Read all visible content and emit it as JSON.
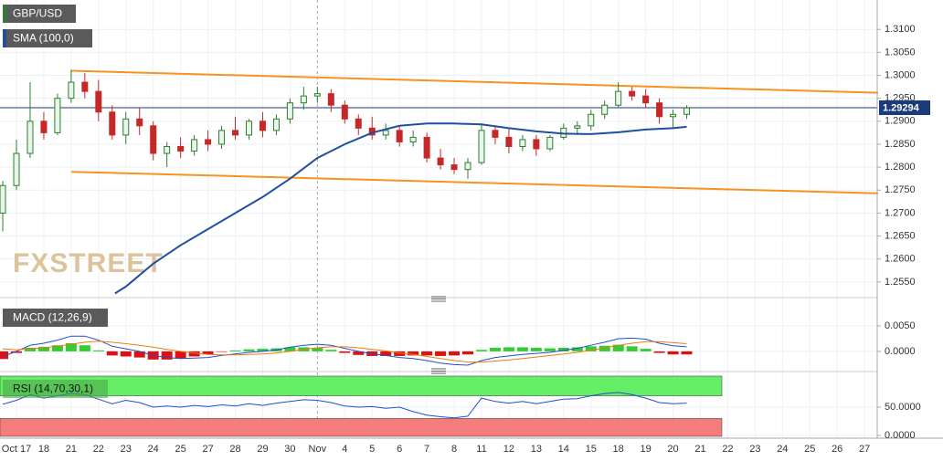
{
  "chart_data": {
    "type": "candlestick",
    "title": "GBP/USD",
    "watermark": "FXSTREET",
    "categories": [
      "Oct 17",
      "18",
      "21",
      "22",
      "23",
      "24",
      "25",
      "27",
      "28",
      "29",
      "30",
      "Nov",
      "4",
      "5",
      "6",
      "7",
      "8",
      "11",
      "12",
      "13",
      "14",
      "15",
      "18",
      "19",
      "20",
      "21",
      "22",
      "23",
      "24",
      "25",
      "26",
      "27"
    ],
    "x": [
      -0.5,
      0,
      0.5,
      1,
      1.5,
      2,
      2.5,
      3,
      3.5,
      4,
      4.5,
      5,
      5.5,
      6,
      6.5,
      7,
      7.5,
      8,
      8.5,
      9,
      9.5,
      10,
      10.5,
      11,
      11.5,
      12,
      12.5,
      13,
      13.5,
      14,
      14.5,
      15,
      15.5,
      16,
      16.5,
      17,
      17.5,
      18,
      18.5,
      19,
      19.5,
      20,
      20.5,
      21,
      21.5,
      22,
      22.5,
      23,
      23.5,
      24,
      24.5
    ],
    "open": [
      1.27,
      1.276,
      1.283,
      1.29,
      1.2875,
      1.295,
      1.2985,
      1.2965,
      1.292,
      1.287,
      1.2905,
      1.289,
      1.283,
      1.2845,
      1.2835,
      1.286,
      1.285,
      1.288,
      1.287,
      1.29,
      1.288,
      1.2905,
      1.294,
      1.2955,
      1.296,
      1.2935,
      1.2905,
      1.2885,
      1.287,
      1.288,
      1.2855,
      1.2865,
      1.282,
      1.2805,
      1.2795,
      1.281,
      1.288,
      1.2865,
      1.2845,
      1.286,
      1.284,
      1.2865,
      1.2885,
      1.289,
      1.2915,
      1.2935,
      1.2965,
      1.2955,
      1.294,
      1.291,
      1.2915
    ],
    "high": [
      1.277,
      1.286,
      1.2985,
      1.292,
      1.296,
      1.3012,
      1.3005,
      1.299,
      1.2935,
      1.292,
      1.293,
      1.29,
      1.2855,
      1.2865,
      1.287,
      1.288,
      1.289,
      1.291,
      1.2905,
      1.292,
      1.2915,
      1.295,
      1.2975,
      1.2975,
      1.297,
      1.2945,
      1.2915,
      1.291,
      1.2895,
      1.289,
      1.288,
      1.2875,
      1.284,
      1.282,
      1.282,
      1.2895,
      1.289,
      1.2885,
      1.287,
      1.287,
      1.287,
      1.2895,
      1.29,
      1.2925,
      1.2945,
      1.2985,
      1.2975,
      1.297,
      1.295,
      1.2925,
      1.2935
    ],
    "low": [
      1.266,
      1.275,
      1.282,
      1.286,
      1.287,
      1.294,
      1.295,
      1.29,
      1.286,
      1.285,
      1.287,
      1.2815,
      1.28,
      1.282,
      1.2825,
      1.2835,
      1.284,
      1.286,
      1.286,
      1.2865,
      1.287,
      1.2895,
      1.2925,
      1.294,
      1.292,
      1.2895,
      1.287,
      1.286,
      1.286,
      1.2845,
      1.2845,
      1.281,
      1.2795,
      1.2785,
      1.2775,
      1.2805,
      1.285,
      1.283,
      1.2835,
      1.2825,
      1.2835,
      1.286,
      1.287,
      1.288,
      1.2905,
      1.293,
      1.2945,
      1.293,
      1.2895,
      1.2885,
      1.2905
    ],
    "close": [
      1.276,
      1.283,
      1.29,
      1.2875,
      1.295,
      1.2985,
      1.2965,
      1.292,
      1.287,
      1.2905,
      1.289,
      1.283,
      1.2845,
      1.2835,
      1.286,
      1.285,
      1.288,
      1.287,
      1.29,
      1.288,
      1.2905,
      1.294,
      1.2955,
      1.296,
      1.2935,
      1.2905,
      1.2885,
      1.287,
      1.288,
      1.2855,
      1.2865,
      1.282,
      1.2805,
      1.2795,
      1.281,
      1.288,
      1.2865,
      1.2845,
      1.286,
      1.284,
      1.2865,
      1.2885,
      1.289,
      1.2915,
      1.2935,
      1.2965,
      1.2955,
      1.294,
      1.291,
      1.2915,
      1.2929
    ],
    "up_color": "#2e7d32",
    "down_color": "#c62828",
    "ylim": [
      1.2518,
      1.3164
    ],
    "yticks": [
      {
        "value": 1.255,
        "label": "1.2550"
      },
      {
        "value": 1.26,
        "label": "1.2600"
      },
      {
        "value": 1.265,
        "label": "1.2650"
      },
      {
        "value": 1.27,
        "label": "1.2700"
      },
      {
        "value": 1.275,
        "label": "1.2750"
      },
      {
        "value": 1.28,
        "label": "1.2800"
      },
      {
        "value": 1.285,
        "label": "1.2850"
      },
      {
        "value": 1.29,
        "label": "1.2900"
      },
      {
        "value": 1.295,
        "label": "1.2950"
      },
      {
        "value": 1.3,
        "label": "1.3000"
      },
      {
        "value": 1.305,
        "label": "1.3050"
      },
      {
        "value": 1.31,
        "label": "1.3100"
      }
    ],
    "grid": true,
    "last_price": 1.29294,
    "last_price_color": "#1a3a7a",
    "overlays": [
      {
        "name": "SMA (100,0)",
        "color": "#1f4fa0",
        "x": [
          3.6,
          4,
          5,
          6,
          7,
          8,
          9,
          10,
          11,
          12,
          13,
          14,
          15,
          16,
          17,
          18,
          19,
          20,
          21,
          22,
          23,
          24,
          24.5
        ],
        "values": [
          1.2525,
          1.254,
          1.259,
          1.263,
          1.2665,
          1.27,
          1.2735,
          1.2775,
          1.282,
          1.285,
          1.2875,
          1.289,
          1.2895,
          1.2895,
          1.2893,
          1.2885,
          1.2878,
          1.2873,
          1.2872,
          1.2876,
          1.2882,
          1.2885,
          1.2888
        ]
      }
    ],
    "trendlines": [
      {
        "color": "#f7931e",
        "x": [
          2,
          31.5
        ],
        "values": [
          1.301,
          1.2962
        ]
      },
      {
        "color": "#f7931e",
        "x": [
          2,
          31.5
        ],
        "values": [
          1.279,
          1.2743
        ]
      }
    ],
    "macd": {
      "name": "MACD (12,26,9)",
      "ylim": [
        -0.0036,
        0.0102
      ],
      "yticks": [
        {
          "value": 0,
          "label": "0.0000"
        },
        {
          "value": 0.005,
          "label": "0.0050"
        }
      ],
      "macd": [
        -0.001,
        0.0,
        0.0012,
        0.0016,
        0.0022,
        0.003,
        0.003,
        0.0022,
        0.001,
        0.0005,
        0.0,
        -0.0008,
        -0.0012,
        -0.0014,
        -0.0013,
        -0.0012,
        -0.0008,
        -0.0005,
        -0.0002,
        0.0,
        0.0003,
        0.0008,
        0.0012,
        0.0014,
        0.0012,
        0.0006,
        0.0,
        -0.0005,
        -0.0008,
        -0.0012,
        -0.0014,
        -0.0018,
        -0.0023,
        -0.0026,
        -0.0027,
        -0.0018,
        -0.0012,
        -0.0009,
        -0.0006,
        -0.0004,
        -0.0002,
        0.0002,
        0.0006,
        0.0012,
        0.0018,
        0.0025,
        0.0026,
        0.0024,
        0.0016,
        0.0011,
        0.0009
      ],
      "signal": [
        0.0005,
        0.0003,
        0.0005,
        0.0007,
        0.001,
        0.0014,
        0.0018,
        0.002,
        0.0018,
        0.0015,
        0.0012,
        0.0008,
        0.0004,
        0.0,
        -0.0003,
        -0.0006,
        -0.0007,
        -0.0007,
        -0.0006,
        -0.0005,
        -0.0003,
        0.0,
        0.0004,
        0.0007,
        0.0009,
        0.0009,
        0.0007,
        0.0004,
        0.0001,
        -0.0003,
        -0.0006,
        -0.001,
        -0.0014,
        -0.0018,
        -0.0021,
        -0.0021,
        -0.0019,
        -0.0017,
        -0.0014,
        -0.0011,
        -0.0008,
        -0.0005,
        -0.0002,
        0.0002,
        0.0007,
        0.0012,
        0.0016,
        0.0019,
        0.0019,
        0.0017,
        0.0015
      ],
      "histogram": [
        -0.0015,
        -0.0003,
        0.0007,
        0.0009,
        0.0012,
        0.0016,
        0.0012,
        0.0002,
        -0.0008,
        -0.001,
        -0.0012,
        -0.0016,
        -0.0016,
        -0.0014,
        -0.001,
        -0.0006,
        -0.0001,
        0.0002,
        0.0004,
        0.0005,
        0.0006,
        0.0008,
        0.0008,
        0.0007,
        0.0003,
        -0.0003,
        -0.0007,
        -0.0009,
        -0.0009,
        -0.0009,
        -0.0008,
        -0.0008,
        -0.0009,
        -0.0008,
        -0.0006,
        0.0003,
        0.0007,
        0.0008,
        0.0008,
        0.0007,
        0.0006,
        0.0007,
        0.0008,
        0.001,
        0.0011,
        0.0013,
        0.001,
        0.0005,
        -0.0003,
        -0.0006,
        -0.0006
      ],
      "macd_color": "#1f4fd0",
      "signal_color": "#f07a10",
      "pos_color": "#33cc33",
      "neg_color": "#e01010"
    },
    "rsi": {
      "name": "RSI (14,70,30,1)",
      "ylim": [
        -1.6,
        108
      ],
      "yticks": [
        {
          "value": 0,
          "label": "0.0000"
        },
        {
          "value": 50,
          "label": "50.0000"
        }
      ],
      "values": [
        55,
        62,
        72,
        66,
        70,
        74,
        72,
        64,
        56,
        62,
        58,
        50,
        52,
        50,
        53,
        51,
        54,
        52,
        56,
        53,
        57,
        60,
        63,
        62,
        58,
        52,
        50,
        51,
        48,
        50,
        42,
        36,
        33,
        31,
        34,
        66,
        60,
        57,
        60,
        56,
        60,
        64,
        65,
        70,
        74,
        76,
        72,
        66,
        58,
        56,
        57
      ],
      "overbought": 70,
      "oversold": 30,
      "color": "#1f4fd0",
      "overbought_color": "#66ee66",
      "oversold_color": "#f47c7c"
    }
  }
}
